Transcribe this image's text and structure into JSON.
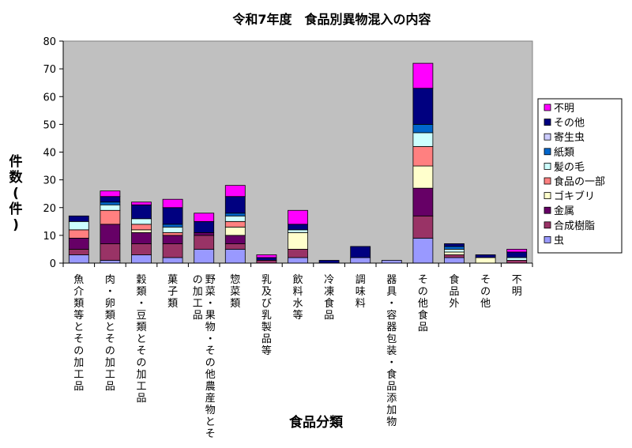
{
  "chart_data": {
    "type": "bar",
    "stacked": true,
    "title": "令和7年度　食品別異物混入の内容",
    "xlabel": "食品分類",
    "ylabel": "件数(件)",
    "ylim": [
      0,
      80
    ],
    "yticks": [
      0,
      10,
      20,
      30,
      40,
      50,
      60,
      70,
      80
    ],
    "grid": false,
    "legend": "right",
    "categories": [
      "魚介類等とその加工品",
      "肉・卵類とその加工品",
      "穀類・豆類とその加工品",
      "菓子類",
      "野菜・果物・その他農産物とその加工品",
      "惣菜類",
      "乳及び乳製品等",
      "飲料水等",
      "冷凍食品",
      "調味料",
      "器具・容器包装・食品添加物",
      "その他食品",
      "食品外",
      "その他",
      "不明"
    ],
    "category_lines": [
      [
        "魚介類等とその加工品"
      ],
      [
        "肉・卵類とその加工品"
      ],
      [
        "穀類・豆類とその加工品"
      ],
      [
        "菓子類"
      ],
      [
        "野菜・果物・その他農産物とそ",
        "の加工品"
      ],
      [
        "惣菜類"
      ],
      [
        "乳及び乳製品等"
      ],
      [
        "飲料水等"
      ],
      [
        "冷凍食品"
      ],
      [
        "調味料"
      ],
      [
        "器具・容器包装・食品添加物"
      ],
      [
        "その他食品"
      ],
      [
        "食品外"
      ],
      [
        "その他"
      ],
      [
        "不明"
      ]
    ],
    "series": [
      {
        "name": "虫",
        "color": "#9999FF",
        "values": [
          3,
          1,
          3,
          2,
          5,
          5,
          0,
          2,
          0,
          2,
          1,
          9,
          2,
          0,
          0
        ]
      },
      {
        "name": "合成樹脂",
        "color": "#993366",
        "values": [
          2,
          6,
          4,
          5,
          5,
          2,
          1,
          3,
          0,
          0,
          0,
          8,
          1,
          0,
          1
        ]
      },
      {
        "name": "金属",
        "color": "#660066",
        "values": [
          4,
          7,
          4,
          3,
          1,
          3,
          0,
          0,
          0,
          0,
          0,
          10,
          0,
          0,
          0
        ]
      },
      {
        "name": "ゴキブリ",
        "color": "#FFFFCC",
        "values": [
          0,
          0,
          1,
          0,
          0,
          3,
          0,
          6,
          0,
          0,
          0,
          8,
          1,
          2,
          0
        ]
      },
      {
        "name": "食品の一部",
        "color": "#FF8080",
        "values": [
          3,
          5,
          2,
          1,
          0,
          2,
          0,
          0,
          0,
          0,
          0,
          7,
          0,
          0,
          0
        ]
      },
      {
        "name": "髪の毛",
        "color": "#CCFFFF",
        "values": [
          3,
          2,
          2,
          2,
          0,
          2,
          0,
          1,
          0,
          0,
          0,
          5,
          1,
          0,
          1
        ]
      },
      {
        "name": "紙類",
        "color": "#0066CC",
        "values": [
          0,
          1,
          0,
          1,
          0,
          1,
          0,
          0,
          0,
          0,
          0,
          3,
          1,
          0,
          0
        ]
      },
      {
        "name": "寄生虫",
        "color": "#CCCCFF",
        "values": [
          0,
          0,
          0,
          0,
          0,
          0,
          0,
          0,
          0,
          0,
          0,
          0,
          0,
          0,
          0
        ]
      },
      {
        "name": "その他",
        "color": "#000080",
        "values": [
          2,
          2,
          5,
          6,
          4,
          6,
          1,
          2,
          1,
          4,
          0,
          13,
          1,
          1,
          2
        ]
      },
      {
        "name": "不明",
        "color": "#FF00FF",
        "values": [
          0,
          2,
          1,
          3,
          3,
          4,
          1,
          5,
          0,
          0,
          0,
          9,
          0,
          0,
          1
        ]
      }
    ]
  }
}
